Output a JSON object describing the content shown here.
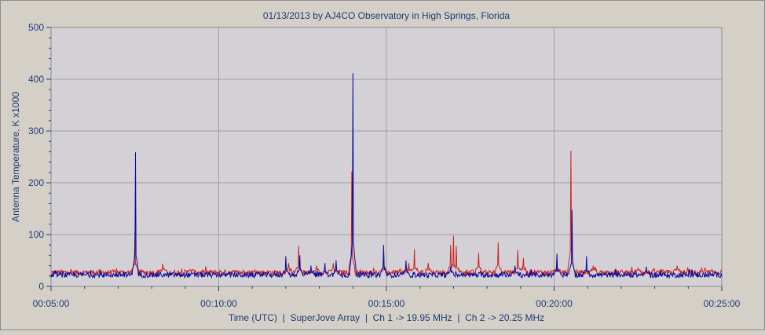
{
  "chart_data": {
    "type": "line",
    "title": "01/13/2013  by  AJ4CO Observatory  in  High Springs, Florida",
    "xlabel": "Time (UTC)  |  SuperJove Array  |  Ch 1 -> 19.95 MHz  |  Ch 2 -> 20.25 MHz",
    "ylabel": "Antenna Temperature, K x1000",
    "xlim": [
      "00:05:00",
      "00:25:00"
    ],
    "ylim": [
      0,
      500
    ],
    "x_ticks": [
      "00:05:00",
      "00:10:00",
      "00:15:00",
      "00:20:00",
      "00:25:00"
    ],
    "y_ticks": [
      "0",
      "100",
      "200",
      "300",
      "400",
      "500"
    ],
    "grid": true,
    "colors": {
      "plot_bg": "#d3d1d5",
      "grid": "#a0a0a0",
      "ch1": "#cc2222",
      "ch2": "#0a0a9c",
      "text": "#1f3a78"
    },
    "series": [
      {
        "name": "Ch 1",
        "color": "#cc2222",
        "baseline": 27,
        "spikes": [
          [
            "00:07:30",
            108
          ],
          [
            "00:08:20",
            44
          ],
          [
            "00:09:10",
            32
          ],
          [
            "00:12:05",
            45
          ],
          [
            "00:12:23",
            78
          ],
          [
            "00:12:55",
            40
          ],
          [
            "00:13:25",
            45
          ],
          [
            "00:13:58",
            222
          ],
          [
            "00:14:55",
            65
          ],
          [
            "00:15:40",
            45
          ],
          [
            "00:15:50",
            72
          ],
          [
            "00:16:15",
            45
          ],
          [
            "00:16:55",
            80
          ],
          [
            "00:17:00",
            98
          ],
          [
            "00:17:05",
            78
          ],
          [
            "00:17:45",
            65
          ],
          [
            "00:18:20",
            85
          ],
          [
            "00:18:55",
            70
          ],
          [
            "00:19:05",
            55
          ],
          [
            "00:20:05",
            50
          ],
          [
            "00:20:30",
            262
          ],
          [
            "00:21:10",
            40
          ],
          [
            "00:22:30",
            35
          ],
          [
            "00:23:40",
            40
          ]
        ]
      },
      {
        "name": "Ch 2",
        "color": "#0a0a9c",
        "baseline": 22,
        "spikes": [
          [
            "00:07:31",
            259
          ],
          [
            "00:12:00",
            58
          ],
          [
            "00:12:25",
            60
          ],
          [
            "00:12:45",
            40
          ],
          [
            "00:13:10",
            45
          ],
          [
            "00:13:30",
            50
          ],
          [
            "00:14:00",
            412
          ],
          [
            "00:14:55",
            80
          ],
          [
            "00:15:35",
            50
          ],
          [
            "00:16:55",
            38
          ],
          [
            "00:18:50",
            40
          ],
          [
            "00:20:05",
            63
          ],
          [
            "00:20:32",
            148
          ],
          [
            "00:20:58",
            58
          ],
          [
            "00:22:45",
            38
          ]
        ]
      }
    ]
  }
}
